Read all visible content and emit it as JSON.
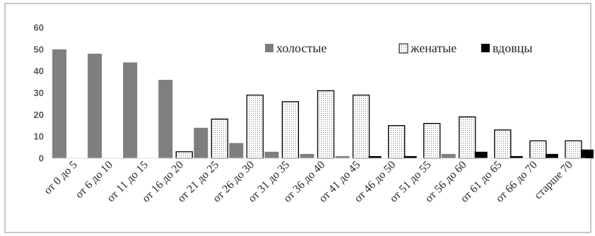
{
  "chart_data": {
    "type": "bar",
    "categories": [
      "от 0 до 5",
      "от 6 до 10",
      "от 11 до 15",
      "от 16 до 20",
      "от 21 до 25",
      "от 26 до 30",
      "от 31 до 35",
      "от 36 до 40",
      "от 41 до 45",
      "от 46 до 50",
      "от 51 до 55",
      "от 56 до 60",
      "от 61 до 65",
      "от 66 до 70",
      "старше 70"
    ],
    "series": [
      {
        "name": "холостые",
        "values": [
          50,
          48,
          44,
          36,
          14,
          7,
          3,
          2,
          1,
          0,
          0,
          2,
          0,
          0,
          0
        ]
      },
      {
        "name": "женатые",
        "values": [
          0,
          0,
          0,
          3,
          18,
          29,
          26,
          31,
          29,
          15,
          16,
          19,
          13,
          8,
          8
        ]
      },
      {
        "name": "вдовцы",
        "values": [
          0,
          0,
          0,
          0,
          0,
          0,
          0,
          0,
          1,
          1,
          0,
          3,
          1,
          2,
          4
        ]
      }
    ],
    "ylim": [
      0,
      60
    ],
    "yticks": [
      0,
      10,
      20,
      30,
      40,
      50,
      60
    ],
    "grid": false,
    "legend_position": "top-right",
    "colors": {
      "холостые": "#7f7f7f",
      "женатые": "#ffffff",
      "вдовцы": "#000000"
    },
    "title": "",
    "xlabel": "",
    "ylabel": ""
  }
}
